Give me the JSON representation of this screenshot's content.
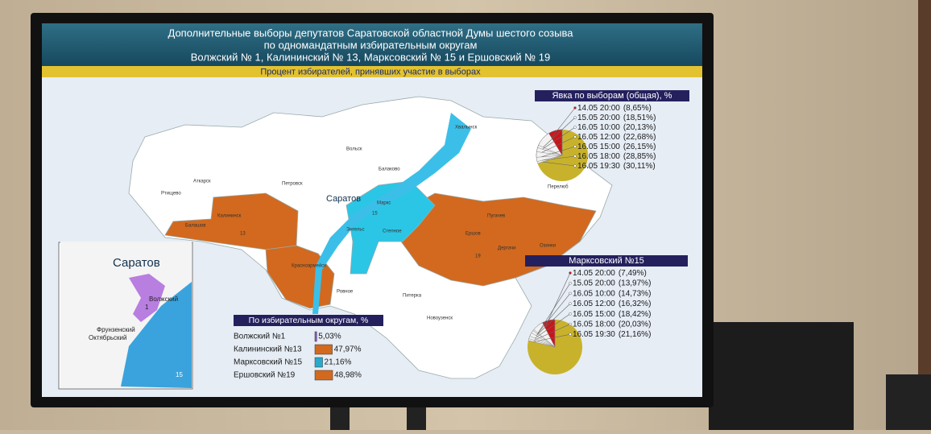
{
  "header": {
    "title_lines": [
      "Дополнительные выборы депутатов Саратовской областной Думы шестого созыва",
      "по одномандатным избирательным округам",
      "Волжский № 1, Калининский № 13, Марксовский № 15 и Ершовский № 19"
    ],
    "subtitle": "Процент избирателей, принявших участие в выборах"
  },
  "map": {
    "labels": [
      "Саратов",
      "Калининск",
      "13",
      "Маркс",
      "15",
      "Ершов",
      "19",
      "Красноармейск",
      "Энгельс",
      "Пугачев",
      "Балаково",
      "Вольск",
      "Хвалынск",
      "Аткарск",
      "Петровск",
      "Балашов",
      "Ртищево",
      "Новоузенск",
      "Озинки",
      "Перелюб",
      "Питерка",
      "Ровное",
      "Дергачи",
      "Степное"
    ]
  },
  "inset": {
    "title": "Саратов",
    "labels": [
      "Волжский",
      "1",
      "Фрунзенский",
      "Октябрьский",
      "15"
    ]
  },
  "turnout_total": {
    "title": "Явка по выборам (общая), %",
    "entries": [
      {
        "time": "14.05 20:00",
        "value": 8.65,
        "value_label": "(8,65%)"
      },
      {
        "time": "15.05 20:00",
        "value": 18.51,
        "value_label": "(18,51%)"
      },
      {
        "time": "16.05 10:00",
        "value": 20.13,
        "value_label": "(20,13%)"
      },
      {
        "time": "16.05 12:00",
        "value": 22.68,
        "value_label": "(22,68%)"
      },
      {
        "time": "16.05 15:00",
        "value": 26.15,
        "value_label": "(26,15%)"
      },
      {
        "time": "16.05 18:00",
        "value": 28.85,
        "value_label": "(28,85%)"
      },
      {
        "time": "16.05 19:30",
        "value": 30.11,
        "value_label": "(30,11%)"
      }
    ]
  },
  "turnout_marks": {
    "title": "Марксовский №15",
    "entries": [
      {
        "time": "14.05 20:00",
        "value": 7.49,
        "value_label": "(7,49%)"
      },
      {
        "time": "15.05 20:00",
        "value": 13.97,
        "value_label": "(13,97%)"
      },
      {
        "time": "16.05 10:00",
        "value": 14.73,
        "value_label": "(14,73%)"
      },
      {
        "time": "16.05 12:00",
        "value": 16.32,
        "value_label": "(16,32%)"
      },
      {
        "time": "16.05 15:00",
        "value": 18.42,
        "value_label": "(18,42%)"
      },
      {
        "time": "16.05 18:00",
        "value": 20.03,
        "value_label": "(20,03%)"
      },
      {
        "time": "16.05 19:30",
        "value": 21.16,
        "value_label": "(21,16%)"
      }
    ]
  },
  "districts": {
    "title": "По избирательным округам, %",
    "rows": [
      {
        "name": "Волжский №1",
        "value": 5.03,
        "value_label": "5,03%"
      },
      {
        "name": "Калининский №13",
        "value": 47.97,
        "value_label": "47,97%"
      },
      {
        "name": "Марксовский №15",
        "value": 21.16,
        "value_label": "21,16%"
      },
      {
        "name": "Ершовский №19",
        "value": 48.98,
        "value_label": "48,98%"
      }
    ]
  }
}
